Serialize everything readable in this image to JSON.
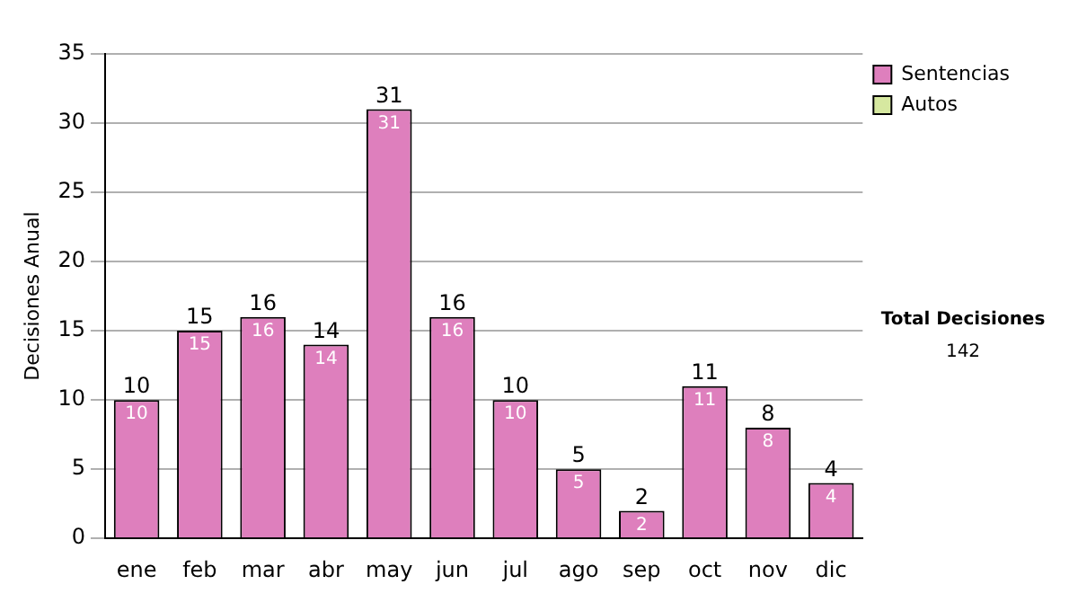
{
  "chart_data": {
    "type": "bar",
    "ylabel": "Decisiones Anual",
    "categories": [
      "ene",
      "feb",
      "mar",
      "abr",
      "may",
      "jun",
      "jul",
      "ago",
      "sep",
      "oct",
      "nov",
      "dic"
    ],
    "series": [
      {
        "name": "Sentencias",
        "color": "#de7fbd",
        "values": [
          10,
          15,
          16,
          14,
          31,
          16,
          10,
          5,
          2,
          11,
          8,
          4
        ],
        "value_labels": [
          "10",
          "15",
          "16",
          "14",
          "31",
          "16",
          "10",
          "5",
          "2",
          "11",
          "8",
          "4"
        ]
      },
      {
        "name": "Autos",
        "color": "#d6e8a0",
        "values": [
          0,
          0,
          0,
          0,
          0,
          0,
          0,
          0,
          0,
          0,
          0,
          0
        ]
      }
    ],
    "stacked": true,
    "totals": [
      "10",
      "15",
      "16",
      "14",
      "31",
      "16",
      "10",
      "5",
      "2",
      "11",
      "8",
      "4"
    ],
    "ylim": [
      0,
      35
    ],
    "yticks": [
      0,
      5,
      10,
      15,
      20,
      25,
      30,
      35
    ],
    "grid": "y",
    "legend": "right",
    "annotations": [
      "Total Decisiones",
      "142"
    ]
  }
}
